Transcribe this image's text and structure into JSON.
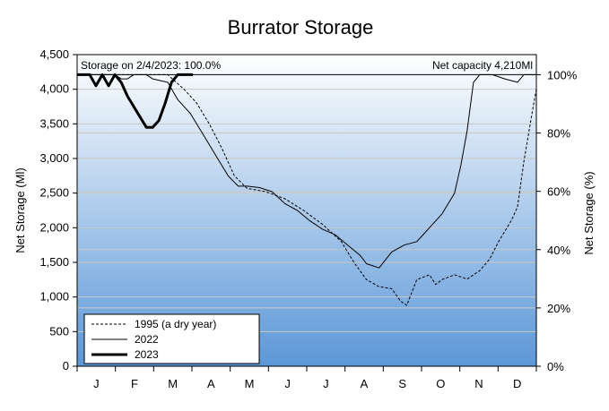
{
  "chart_data": {
    "type": "line",
    "title": "Burrator Storage",
    "ylabel": "Net Storage (Ml)",
    "y2label": "Net Storage (%)",
    "ylim": [
      0,
      4500
    ],
    "y2lim": [
      0,
      100
    ],
    "net_capacity_ml": 4210,
    "yticks": [
      "0",
      "500",
      "1,000",
      "1,500",
      "2,000",
      "2,500",
      "3,000",
      "3,500",
      "4,000",
      "4,500"
    ],
    "y2ticks": [
      "0%",
      "20%",
      "40%",
      "60%",
      "80%",
      "100%"
    ],
    "months": [
      "J",
      "F",
      "M",
      "A",
      "M",
      "J",
      "J",
      "A",
      "S",
      "O",
      "N",
      "D"
    ],
    "annotation_left": "Storage on 2/4/2023: 100.0%",
    "annotation_right": "Net capacity 4,210Ml",
    "background": {
      "top": "#ffffff",
      "bottom": "#5b97d8"
    },
    "gridlines": true,
    "legend_position": "bottom-left",
    "series": [
      {
        "name": "1995 (a dry year)",
        "style": "dashed",
        "color": "#000000",
        "x": [
          0,
          30,
          45,
          60,
          72,
          85,
          95,
          105,
          115,
          125,
          135,
          150,
          165,
          180,
          195,
          210,
          220,
          230,
          240,
          250,
          257,
          262,
          270,
          280,
          285,
          290,
          300,
          310,
          320,
          328,
          335,
          340,
          345,
          350,
          355,
          362,
          365
        ],
        "y": [
          4210,
          4210,
          4210,
          4210,
          4210,
          4000,
          3800,
          3500,
          3150,
          2750,
          2570,
          2520,
          2420,
          2250,
          2050,
          1800,
          1500,
          1250,
          1150,
          1120,
          940,
          880,
          1250,
          1320,
          1180,
          1250,
          1320,
          1260,
          1380,
          1550,
          1800,
          1950,
          2100,
          2300,
          2950,
          3700,
          4000
        ]
      },
      {
        "name": "2022",
        "style": "solid",
        "color": "#000000",
        "x": [
          0,
          10,
          20,
          30,
          35,
          40,
          45,
          55,
          60,
          72,
          80,
          90,
          100,
          110,
          120,
          128,
          135,
          145,
          155,
          165,
          175,
          185,
          195,
          205,
          215,
          225,
          230,
          240,
          250,
          260,
          270,
          275,
          280,
          290,
          300,
          305,
          310,
          315,
          320,
          330,
          340,
          350,
          355,
          365
        ],
        "y": [
          4210,
          4210,
          4210,
          4210,
          4150,
          4150,
          4210,
          4210,
          4150,
          4100,
          3850,
          3650,
          3350,
          3050,
          2750,
          2600,
          2600,
          2580,
          2520,
          2350,
          2250,
          2100,
          1980,
          1900,
          1750,
          1600,
          1480,
          1420,
          1650,
          1750,
          1800,
          1900,
          2000,
          2200,
          2500,
          2900,
          3400,
          4100,
          4210,
          4210,
          4150,
          4100,
          4210,
          4210
        ]
      },
      {
        "name": "2023",
        "style": "bold",
        "color": "#000000",
        "x": [
          0,
          10,
          15,
          20,
          25,
          30,
          35,
          40,
          45,
          50,
          55,
          60,
          65,
          70,
          75,
          80,
          85,
          92
        ],
        "y": [
          4210,
          4210,
          4050,
          4210,
          4050,
          4210,
          4100,
          3900,
          3750,
          3600,
          3450,
          3450,
          3550,
          3800,
          4100,
          4210,
          4210,
          4210
        ]
      }
    ]
  }
}
